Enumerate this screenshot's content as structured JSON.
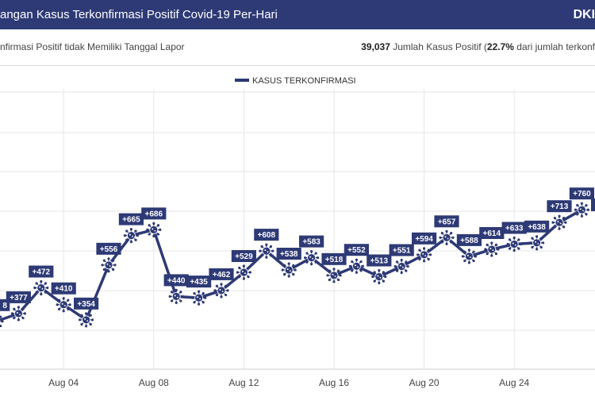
{
  "header": {
    "title": "angan Kasus Terkonfirmasi Positif Covid-19 Per-Hari",
    "brand": "DKI"
  },
  "infobar": {
    "left_text": "nfirmasi Positif tidak Memiliki Tanggal Lapor",
    "right_count": "39,037",
    "right_text_1": " Jumlah Kasus Positif (",
    "right_pct": "22.7%",
    "right_text_2": " dari jumlah terkonf"
  },
  "colors": {
    "header_bg": "#2e3a75",
    "series": "#2e3a75",
    "label_bg": "#2e3a75",
    "grid": "#e6e6e6"
  },
  "chart_data": {
    "type": "line",
    "legend": {
      "label": "KASUS TERKONFIRMASI",
      "position": "top-center"
    },
    "grid": true,
    "x_ticks": [
      "Aug 04",
      "Aug 08",
      "Aug 12",
      "Aug 16",
      "Aug 20",
      "Aug 24",
      "Aug"
    ],
    "series": [
      {
        "name": "KASUS TERKONFIRMASI",
        "marker": "virus-icon",
        "x": [
          "Aug 01",
          "Aug 02",
          "Aug 03",
          "Aug 04",
          "Aug 05",
          "Aug 06",
          "Aug 07",
          "Aug 08",
          "Aug 09",
          "Aug 10",
          "Aug 11",
          "Aug 12",
          "Aug 13",
          "Aug 14",
          "Aug 15",
          "Aug 16",
          "Aug 17",
          "Aug 18",
          "Aug 19",
          "Aug 20",
          "Aug 21",
          "Aug 22",
          "Aug 23",
          "Aug 24",
          "Aug 25",
          "Aug 26",
          "Aug 27"
        ],
        "values": [
          348,
          377,
          472,
          410,
          354,
          556,
          665,
          686,
          440,
          435,
          462,
          529,
          608,
          538,
          583,
          518,
          552,
          513,
          551,
          594,
          657,
          588,
          614,
          633,
          638,
          713,
          760
        ],
        "labels": [
          "8",
          "+377",
          "+472",
          "+410",
          "+354",
          "+556",
          "+665",
          "+686",
          "+440",
          "+435",
          "+462",
          "+529",
          "+608",
          "+538",
          "+583",
          "+518",
          "+552",
          "+513",
          "+551",
          "+594",
          "+657",
          "+588",
          "+614",
          "+633",
          "+638",
          "+713",
          "+760"
        ]
      }
    ]
  }
}
